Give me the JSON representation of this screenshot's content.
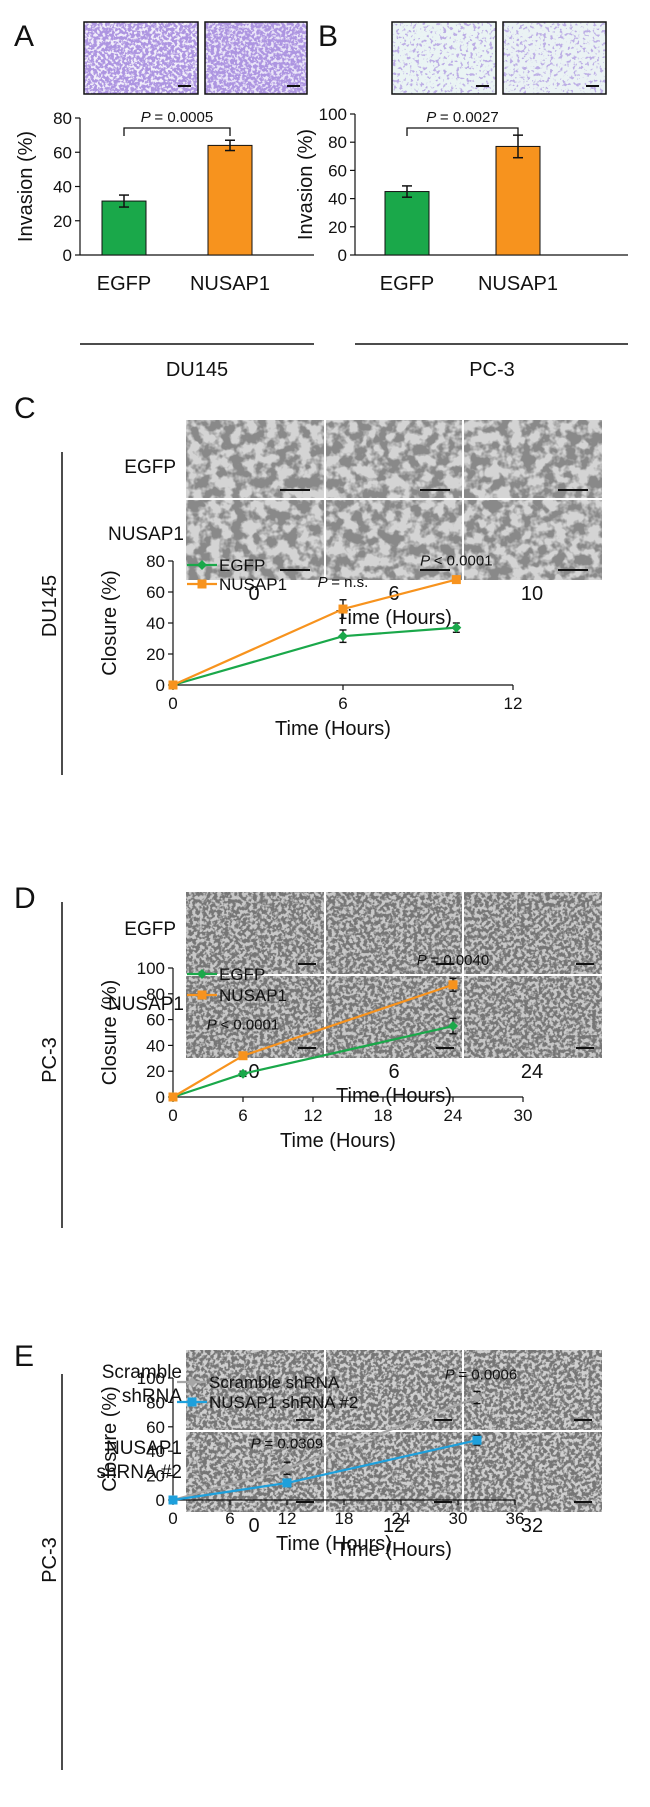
{
  "panels": {
    "A": {
      "letter": "A",
      "cell_line": "DU145"
    },
    "B": {
      "letter": "B",
      "cell_line": "PC-3"
    },
    "C": {
      "letter": "C",
      "cell_line": "DU145",
      "rows": [
        "EGFP",
        "NUSAP1"
      ],
      "times": [
        "0",
        "6",
        "10"
      ],
      "time_label": "Time (Hours)"
    },
    "D": {
      "letter": "D",
      "cell_line": "PC-3",
      "rows": [
        "EGFP",
        "NUSAP1"
      ],
      "times": [
        "0",
        "6",
        "24"
      ],
      "time_label": "Time (Hours)"
    },
    "E": {
      "letter": "E",
      "cell_line": "PC-3",
      "rows": [
        "Scramble",
        "shRNA",
        "NUSAP1",
        "shRNA #2"
      ],
      "times": [
        "0",
        "12",
        "32"
      ],
      "time_label": "Time (Hours)"
    }
  },
  "colors": {
    "green": "#1aa84a",
    "orange": "#f7931e",
    "gray": "#a6a6a6",
    "blue": "#1ea0dc"
  },
  "chart_data": [
    {
      "id": "A",
      "type": "bar",
      "categories": [
        "EGFP",
        "NUSAP1"
      ],
      "values": [
        31.5,
        64
      ],
      "errors": [
        3.5,
        3
      ],
      "ylabel": "Invasion (%)",
      "ylim": [
        0,
        80
      ],
      "yticks": [
        0,
        20,
        40,
        60,
        80
      ],
      "p_text": "= 0.0005",
      "group_label": "DU145"
    },
    {
      "id": "B",
      "type": "bar",
      "categories": [
        "EGFP",
        "NUSAP1"
      ],
      "values": [
        45,
        77
      ],
      "errors": [
        4,
        8
      ],
      "ylabel": "Invasion (%)",
      "ylim": [
        0,
        100
      ],
      "yticks": [
        0,
        20,
        40,
        60,
        80,
        100
      ],
      "p_text": "= 0.0027",
      "group_label": "PC-3"
    },
    {
      "id": "C",
      "type": "line",
      "xlabel": "Time (Hours)",
      "ylabel": "Closure (%)",
      "xlim": [
        0,
        12
      ],
      "xticks": [
        0,
        6,
        12
      ],
      "ylim": [
        0,
        80
      ],
      "yticks": [
        0,
        20,
        40,
        60,
        80
      ],
      "series": [
        {
          "name": "EGFP",
          "color": "#1aa84a",
          "marker": "diamond",
          "x": [
            0,
            6,
            10
          ],
          "y": [
            0,
            31.5,
            37
          ],
          "err": [
            0,
            4,
            3
          ]
        },
        {
          "name": "NUSAP1",
          "color": "#f7931e",
          "marker": "square",
          "x": [
            0,
            6,
            10
          ],
          "y": [
            0,
            49,
            68
          ],
          "err": [
            0,
            6,
            2
          ]
        }
      ],
      "annotations": [
        {
          "x": 6,
          "y": 49,
          "text": "= n.s."
        },
        {
          "x": 10,
          "y": 68,
          "text": "< 0.0001"
        }
      ]
    },
    {
      "id": "D",
      "type": "line",
      "xlabel": "Time (Hours)",
      "ylabel": "Closure (%)",
      "xlim": [
        0,
        30
      ],
      "xticks": [
        0,
        6,
        12,
        18,
        24,
        30
      ],
      "ylim": [
        0,
        100
      ],
      "yticks": [
        0,
        20,
        40,
        60,
        80,
        100
      ],
      "series": [
        {
          "name": "EGFP",
          "color": "#1aa84a",
          "marker": "diamond",
          "x": [
            0,
            6,
            24
          ],
          "y": [
            0,
            18,
            55
          ],
          "err": [
            0,
            2,
            6
          ]
        },
        {
          "name": "NUSAP1",
          "color": "#f7931e",
          "marker": "square",
          "x": [
            0,
            6,
            24
          ],
          "y": [
            0,
            32,
            87
          ],
          "err": [
            0,
            2,
            5
          ]
        }
      ],
      "annotations": [
        {
          "x": 6,
          "y": 32,
          "text": "< 0.0001"
        },
        {
          "x": 24,
          "y": 87,
          "text": "= 0.0040"
        }
      ]
    },
    {
      "id": "E",
      "type": "line",
      "xlabel": "Time (Hours)",
      "ylabel": "Closure (%)",
      "xlim": [
        0,
        36
      ],
      "xticks": [
        0,
        6,
        12,
        18,
        24,
        30,
        36
      ],
      "ylim": [
        0,
        100
      ],
      "yticks": [
        0,
        20,
        40,
        60,
        80,
        100
      ],
      "series": [
        {
          "name": "Scramble shRNA",
          "color": "#a6a6a6",
          "marker": "diamond",
          "x": [
            0,
            12,
            32
          ],
          "y": [
            0,
            26,
            84
          ],
          "err": [
            0,
            5,
            5
          ]
        },
        {
          "name": "NUSAP1 shRNA #2",
          "color": "#1ea0dc",
          "marker": "square",
          "x": [
            0,
            12,
            32
          ],
          "y": [
            0,
            14,
            49
          ],
          "err": [
            0,
            3,
            4
          ]
        }
      ],
      "annotations": [
        {
          "x": 12,
          "y": 26,
          "text": "= 0.0309"
        },
        {
          "x": 32,
          "y": 84,
          "text": "= 0.0006"
        }
      ]
    }
  ]
}
